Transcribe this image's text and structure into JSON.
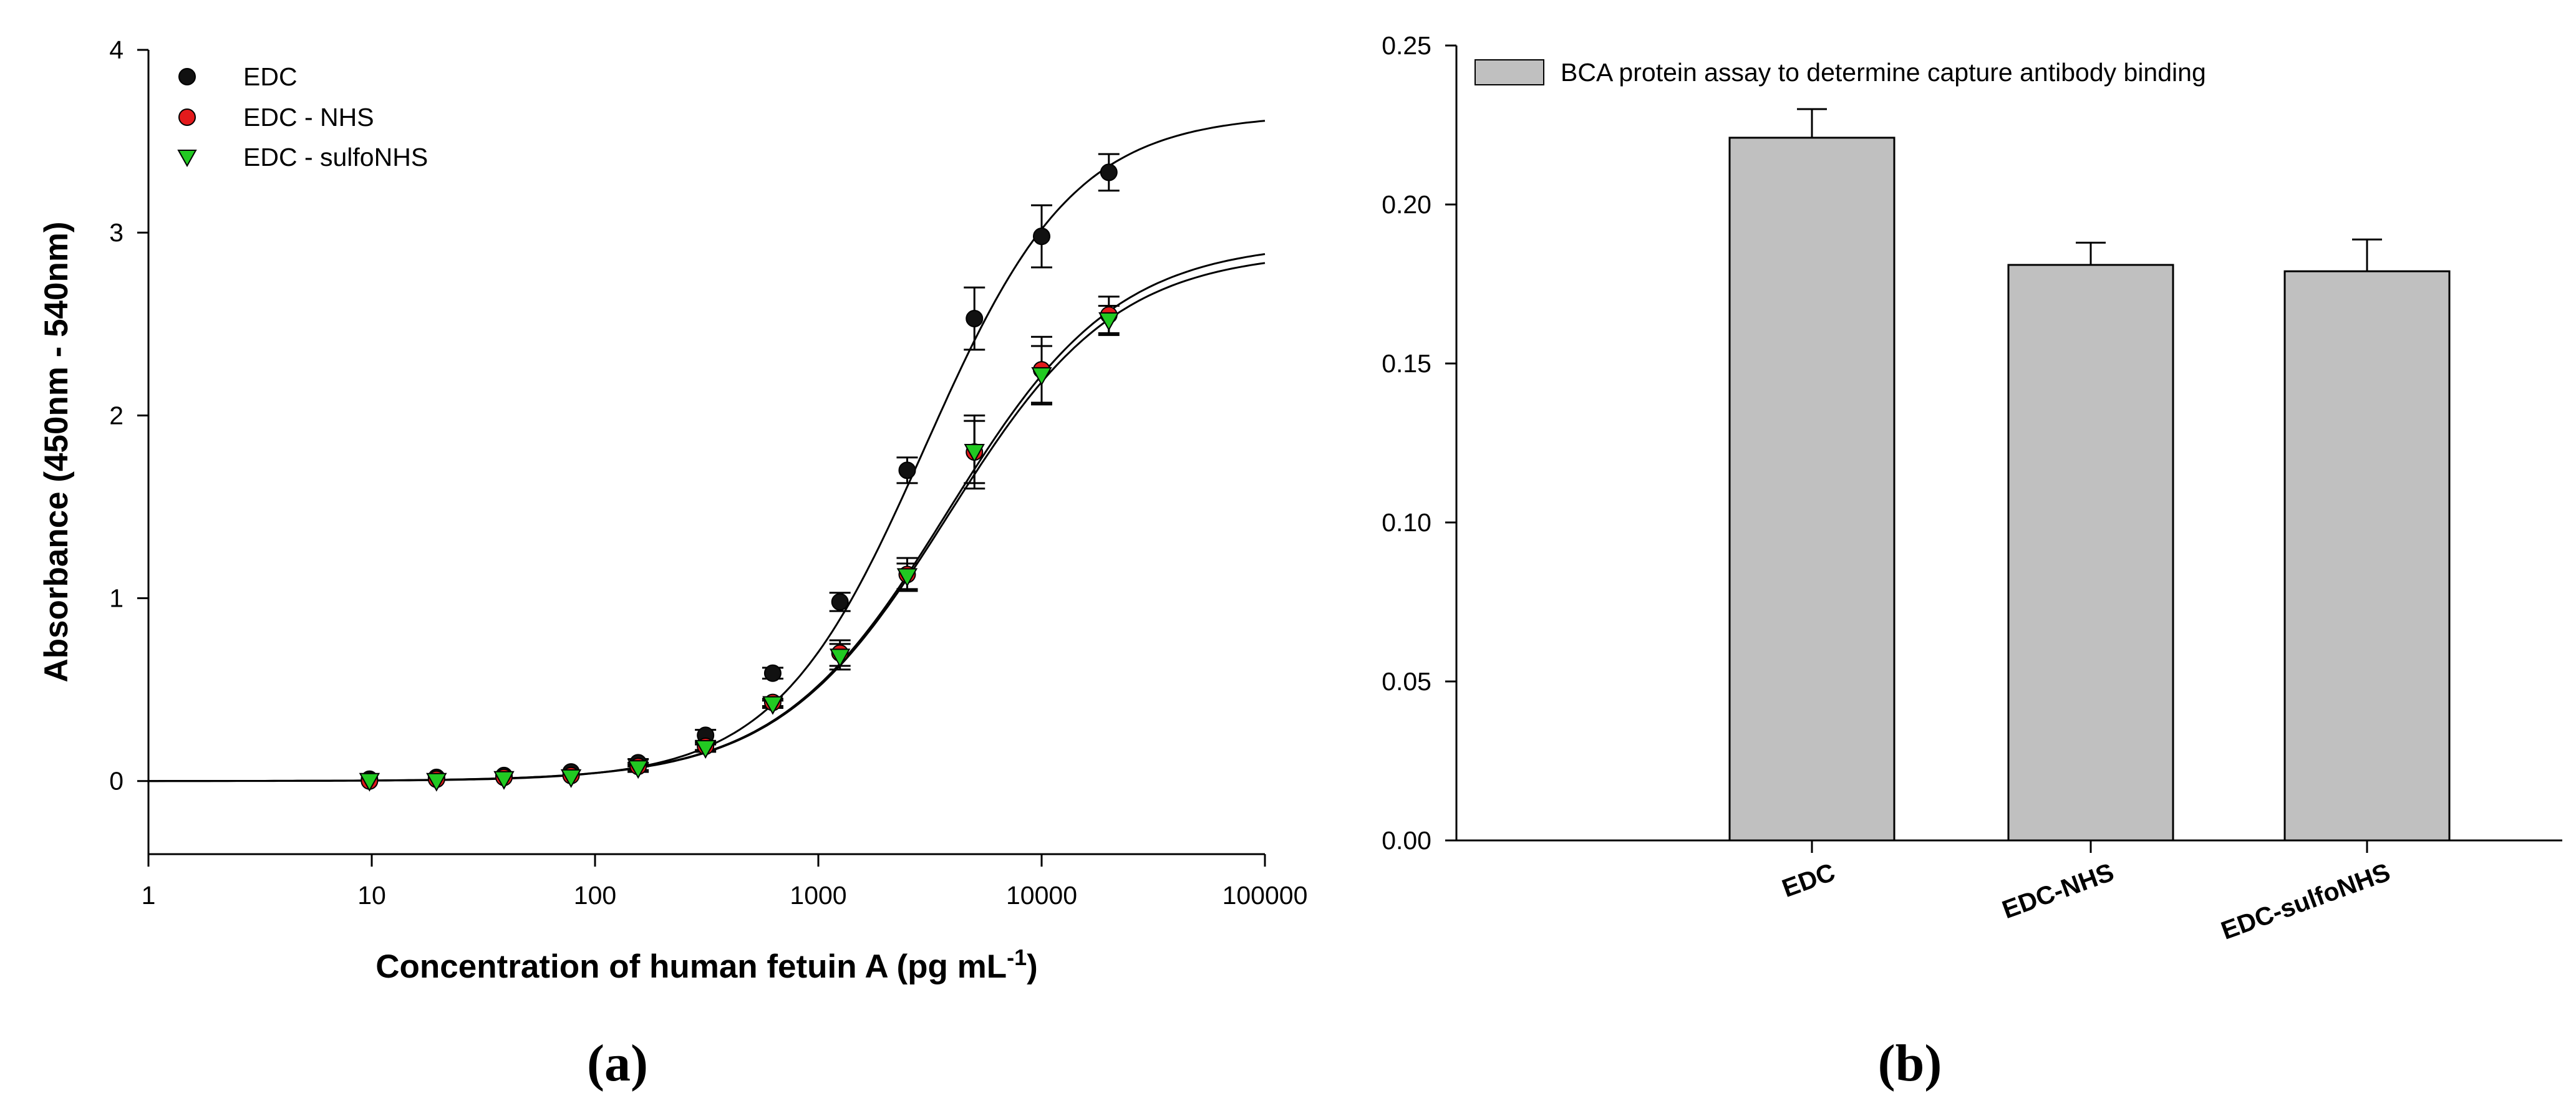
{
  "chart_data": [
    {
      "type": "scatter",
      "panel_label": "(a)",
      "title": "",
      "xlabel": "Concentration of human fetuin A (pg mL",
      "xlabel_sup": "-1",
      "xlabel_close": ")",
      "ylabel": "Absorbance (450nm - 540nm)",
      "xscale": "log",
      "xlim": [
        1,
        100000
      ],
      "ylim": [
        -0.4,
        4
      ],
      "xticks": [
        1,
        10,
        100,
        1000,
        10000,
        100000
      ],
      "xtick_labels": [
        "1",
        "10",
        "100",
        "1000",
        "10000",
        "100000"
      ],
      "yticks": [
        0,
        1,
        2,
        3,
        4
      ],
      "ytick_labels": [
        "0",
        "1",
        "2",
        "3",
        "4"
      ],
      "legend_position": "top-left",
      "series": [
        {
          "name": "EDC",
          "marker": "circle",
          "color": "#111111",
          "x": [
            9.77,
            19.5,
            39.1,
            78.1,
            156,
            312.5,
            625,
            1250,
            2500,
            5000,
            10000,
            20000
          ],
          "y": [
            0.01,
            0.02,
            0.03,
            0.05,
            0.1,
            0.25,
            0.59,
            0.98,
            1.7,
            2.53,
            2.98,
            3.33
          ],
          "err": [
            0,
            0,
            0,
            0,
            0.02,
            0.03,
            0.03,
            0.05,
            0.07,
            0.17,
            0.17,
            0.1
          ],
          "fit": {
            "bottom": 0.0,
            "top": 3.65,
            "ec50": 3000,
            "hill": 1.3
          }
        },
        {
          "name": "EDC - NHS",
          "marker": "circle",
          "color": "#e31a1c",
          "x": [
            9.77,
            19.5,
            39.1,
            78.1,
            156,
            312.5,
            625,
            1250,
            2500,
            5000,
            10000,
            20000
          ],
          "y": [
            0.0,
            0.01,
            0.02,
            0.03,
            0.08,
            0.19,
            0.43,
            0.7,
            1.13,
            1.8,
            2.25,
            2.55
          ],
          "err": [
            0,
            0,
            0,
            0,
            0.02,
            0.02,
            0.02,
            0.07,
            0.09,
            0.2,
            0.18,
            0.1
          ],
          "fit": {
            "bottom": 0.0,
            "top": 2.95,
            "ec50": 3800,
            "hill": 1.15
          }
        },
        {
          "name": "EDC - sulfoNHS",
          "marker": "triangle-down",
          "color": "#22c922",
          "x": [
            9.77,
            19.5,
            39.1,
            78.1,
            156,
            312.5,
            625,
            1250,
            2500,
            5000,
            10000,
            20000
          ],
          "y": [
            0.0,
            0.0,
            0.01,
            0.02,
            0.07,
            0.18,
            0.42,
            0.68,
            1.12,
            1.8,
            2.22,
            2.52
          ],
          "err": [
            0,
            0,
            0,
            0,
            0.02,
            0.02,
            0.02,
            0.07,
            0.07,
            0.17,
            0.16,
            0.08
          ],
          "fit": {
            "bottom": 0.0,
            "top": 2.9,
            "ec50": 3800,
            "hill": 1.15
          }
        }
      ]
    },
    {
      "type": "bar",
      "panel_label": "(b)",
      "title": "",
      "xlabel": "",
      "ylabel": "",
      "categories": [
        "EDC",
        "EDC-NHS",
        "EDC-sulfoNHS"
      ],
      "values": [
        0.221,
        0.181,
        0.179
      ],
      "errors": [
        0.009,
        0.007,
        0.01
      ],
      "ylim": [
        0,
        0.25
      ],
      "yticks": [
        0,
        0.05,
        0.1,
        0.15,
        0.2,
        0.25
      ],
      "ytick_labels": [
        "0.00",
        "0.05",
        "0.10",
        "0.15",
        "0.20",
        "0.25"
      ],
      "bar_color": "#c0c0c0",
      "legend": [
        "BCA protein assay to determine capture antibody binding"
      ],
      "legend_position": "top-left"
    }
  ]
}
